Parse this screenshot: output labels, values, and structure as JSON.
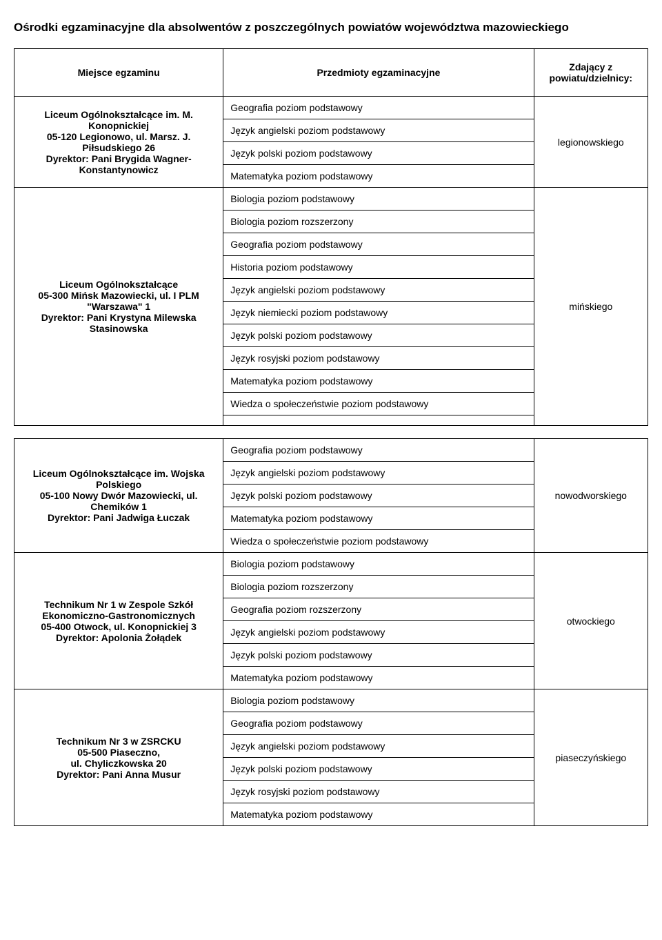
{
  "heading": "Ośrodki egzaminacyjne dla absolwentów z poszczególnych powiatów województwa mazowieckiego",
  "headers": {
    "place": "Miejsce egzaminu",
    "subjects": "Przedmioty egzaminacyjne",
    "district": "Zdający z powiatu/dzielnicy:"
  },
  "tables": [
    {
      "rows": [
        {
          "place": "Liceum Ogólnokształcące im. M. Konopnickiej\n05-120 Legionowo, ul. Marsz. J. Piłsudskiego 26\nDyrektor: Pani Brygida Wagner-Konstantynowicz",
          "subjects": [
            "Geografia poziom podstawowy",
            "Język angielski poziom podstawowy",
            "Język polski poziom podstawowy",
            "Matematyka poziom podstawowy"
          ],
          "district": "legionowskiego"
        },
        {
          "place": "Liceum Ogólnokształcące\n05-300 Mińsk Mazowiecki, ul. I PLM \"Warszawa\" 1\nDyrektor: Pani Krystyna Milewska Stasinowska",
          "subjects": [
            "Biologia poziom podstawowy",
            "Biologia poziom rozszerzony",
            "Geografia poziom podstawowy",
            "Historia poziom podstawowy",
            "Język angielski poziom podstawowy",
            "Język niemiecki poziom podstawowy",
            "Język polski poziom podstawowy",
            "Język rosyjski poziom podstawowy",
            "Matematyka poziom podstawowy",
            "Wiedza o społeczeństwie poziom podstawowy",
            ""
          ],
          "district": "mińskiego"
        }
      ]
    },
    {
      "rows": [
        {
          "place": "Liceum Ogólnokształcące im. Wojska Polskiego\n05-100 Nowy Dwór Mazowiecki, ul. Chemików 1\nDyrektor: Pani Jadwiga Łuczak",
          "subjects": [
            "Geografia poziom podstawowy",
            "Język angielski poziom podstawowy",
            "Język polski poziom podstawowy",
            "Matematyka poziom podstawowy",
            "Wiedza o społeczeństwie poziom podstawowy"
          ],
          "district": "nowodworskiego"
        },
        {
          "place": "Technikum Nr 1 w Zespole Szkół Ekonomiczno-Gastronomicznych\n05-400 Otwock, ul. Konopnickiej 3\nDyrektor: Apolonia Żołądek",
          "subjects": [
            "Biologia poziom podstawowy",
            "Biologia poziom rozszerzony",
            "Geografia poziom rozszerzony",
            "Język angielski poziom podstawowy",
            "Język polski poziom podstawowy",
            "Matematyka poziom podstawowy"
          ],
          "district": "otwockiego"
        },
        {
          "place": "Technikum Nr 3 w ZSRCKU\n05-500 Piaseczno,\nul. Chyliczkowska 20\nDyrektor: Pani Anna Musur",
          "subjects": [
            "Biologia poziom podstawowy",
            "Geografia poziom podstawowy",
            "Język angielski poziom podstawowy",
            "Język polski poziom podstawowy",
            "Język rosyjski poziom podstawowy",
            "Matematyka poziom podstawowy"
          ],
          "district": "piaseczyńskiego"
        }
      ]
    }
  ]
}
